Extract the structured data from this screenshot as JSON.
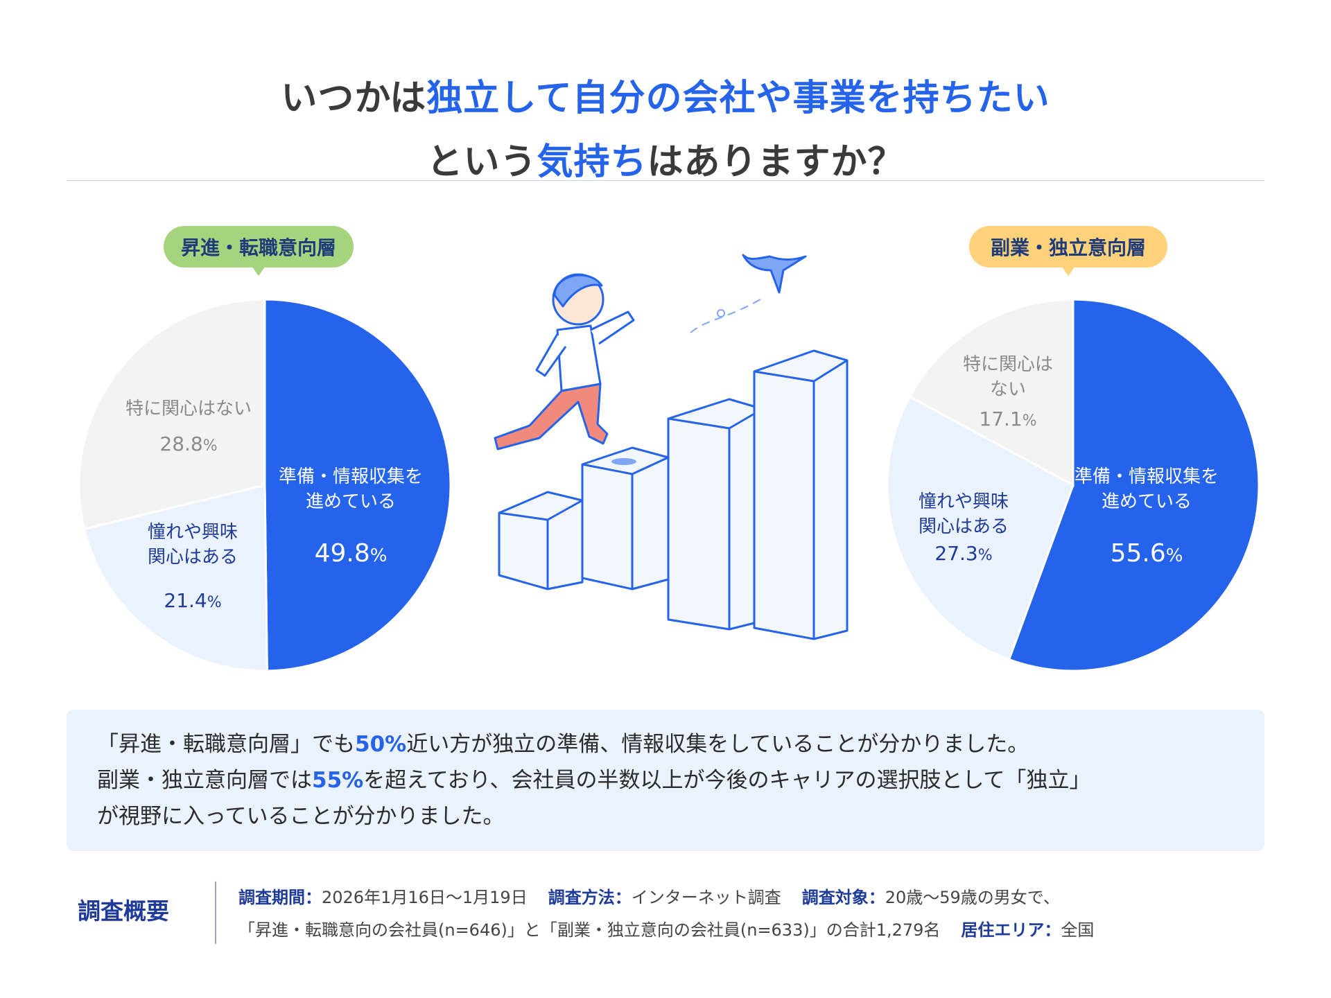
{
  "title": {
    "line1": [
      "いつかは",
      "独立して自分の会社や事業を持ちたい"
    ],
    "line2": [
      "という",
      "気持ち",
      "はありますか？"
    ]
  },
  "colors": {
    "accent": "#2563eb",
    "badge_left": "#a6d47e",
    "badge_right": "#fdd27a",
    "slice_prepare": "#2563eb",
    "slice_interest": "#eaf2fd",
    "slice_none": "#f4f3f3"
  },
  "chart_data": [
    {
      "type": "pie",
      "title": "昇進・転職意向層",
      "slices": [
        {
          "label_lines": [
            "準備・情報収集を",
            "進めている"
          ],
          "value": 49.8,
          "display": "49.8",
          "unit": "%"
        },
        {
          "label_lines": [
            "憧れや興味",
            "関心はある"
          ],
          "value": 21.4,
          "display": "21.4",
          "unit": "%"
        },
        {
          "label_lines": [
            "特に関心はない"
          ],
          "value": 28.8,
          "display": "28.8",
          "unit": "%"
        }
      ]
    },
    {
      "type": "pie",
      "title": "副業・独立意向層",
      "slices": [
        {
          "label_lines": [
            "準備・情報収集を",
            "進めている"
          ],
          "value": 55.6,
          "display": "55.6",
          "unit": "%"
        },
        {
          "label_lines": [
            "憧れや興味",
            "関心はある"
          ],
          "value": 27.3,
          "display": "27.3",
          "unit": "%"
        },
        {
          "label_lines": [
            "特に関心は",
            "ない"
          ],
          "value": 17.1,
          "display": "17.1",
          "unit": "%"
        }
      ]
    }
  ],
  "summary": {
    "line1": [
      "「昇進・転職意向層」でも",
      "50%",
      "近い方が独立の準備、情報収集をしていることが分かりました。"
    ],
    "line2": [
      "副業・独立意向層では",
      "55%",
      "を超えており、会社員の半数以上が今後のキャリアの選択肢として「独立」"
    ],
    "line3": "が視野に入っていることが分かりました。"
  },
  "survey": {
    "title": "調査概要",
    "period_key": "調査期間：",
    "period_val": "2026年1月16日〜1月19日",
    "method_key": "調査方法：",
    "method_val": "インターネット調査",
    "target_key": "調査対象：",
    "target_val": "20歳〜59歳の男女で、",
    "target_detail": "「昇進・転職意向の会社員(n=646)」と「副業・独立意向の会社員(n=633)」の合計1,279名",
    "area_key": "居住エリア：",
    "area_val": "全国"
  }
}
